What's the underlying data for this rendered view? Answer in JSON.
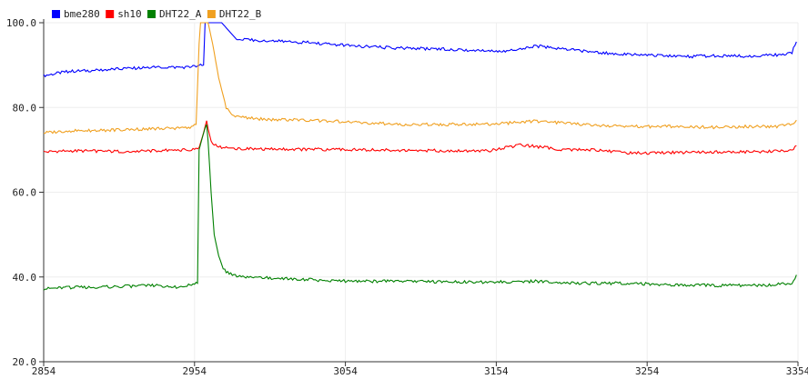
{
  "chart_data": {
    "type": "line",
    "title": "",
    "xlabel": "",
    "ylabel": "",
    "xlim": [
      2854,
      3354
    ],
    "ylim": [
      20,
      100
    ],
    "x_ticks": [
      "2854",
      "2954",
      "3054",
      "3154",
      "3254",
      "3354"
    ],
    "y_ticks": [
      "20.0",
      "40.0",
      "60.0",
      "80.0",
      "100.0"
    ],
    "grid": true,
    "legend_position": "top-left",
    "series": [
      {
        "name": "bme280",
        "color": "#0000ff",
        "x": [
          2854,
          2870,
          2890,
          2910,
          2930,
          2950,
          2960,
          2961,
          2963,
          2968,
          2970,
          2972,
          2982,
          3000,
          3030,
          3060,
          3090,
          3120,
          3140,
          3160,
          3180,
          3200,
          3220,
          3240,
          3260,
          3280,
          3300,
          3320,
          3340,
          3350,
          3353
        ],
        "y": [
          87.5,
          88.5,
          88.8,
          89.2,
          89.5,
          89.5,
          90.0,
          100.0,
          100.0,
          100.0,
          100.0,
          100.0,
          96.0,
          95.8,
          95.3,
          94.5,
          94.0,
          93.8,
          93.5,
          93.3,
          94.5,
          93.8,
          93.0,
          92.5,
          92.3,
          92.0,
          92.2,
          92.1,
          92.4,
          93.0,
          95.5
        ]
      },
      {
        "name": "sh10",
        "color": "#ff0000",
        "x": [
          2854,
          2870,
          2890,
          2910,
          2930,
          2950,
          2957,
          2960,
          2962,
          2963,
          2965,
          2968,
          2972,
          2980,
          3000,
          3030,
          3060,
          3090,
          3120,
          3150,
          3170,
          3200,
          3220,
          3240,
          3260,
          3280,
          3300,
          3320,
          3340,
          3350,
          3353
        ],
        "y": [
          69.5,
          69.8,
          69.7,
          69.6,
          69.8,
          70.0,
          70.5,
          74.0,
          77.0,
          75.0,
          72.0,
          71.0,
          70.5,
          70.3,
          70.2,
          70.1,
          70.0,
          69.9,
          69.8,
          69.8,
          71.2,
          70.0,
          70.0,
          69.2,
          69.3,
          69.4,
          69.5,
          69.5,
          69.7,
          69.8,
          71.0
        ]
      },
      {
        "name": "DHT22_A",
        "color": "#008000",
        "x": [
          2854,
          2870,
          2890,
          2910,
          2930,
          2945,
          2950,
          2956,
          2957,
          2960,
          2962,
          2963,
          2965,
          2967,
          2970,
          2973,
          2976,
          2980,
          2990,
          3000,
          3020,
          3040,
          3060,
          3090,
          3120,
          3150,
          3180,
          3210,
          3240,
          3270,
          3300,
          3330,
          3350,
          3353
        ],
        "y": [
          37.2,
          37.5,
          37.6,
          37.8,
          38.0,
          37.5,
          38.0,
          38.5,
          70.0,
          74.0,
          76.0,
          72.0,
          60.0,
          50.0,
          45.0,
          42.0,
          41.0,
          40.3,
          40.0,
          39.8,
          39.5,
          39.2,
          39.0,
          39.0,
          38.8,
          38.8,
          39.0,
          38.5,
          38.5,
          38.2,
          38.0,
          38.0,
          38.5,
          40.5
        ]
      },
      {
        "name": "DHT22_B",
        "color": "#f0a020",
        "x": [
          2854,
          2870,
          2890,
          2910,
          2930,
          2950,
          2955,
          2956,
          2957,
          2958,
          2960,
          2963,
          2966,
          2970,
          2975,
          2980,
          2990,
          3000,
          3030,
          3060,
          3090,
          3120,
          3150,
          3180,
          3210,
          3240,
          3270,
          3300,
          3320,
          3340,
          3350,
          3353
        ],
        "y": [
          74.0,
          74.5,
          74.6,
          74.8,
          75.0,
          75.2,
          76.0,
          85.0,
          95.0,
          100.0,
          100.0,
          100.0,
          95.0,
          87.0,
          80.0,
          78.0,
          77.5,
          77.2,
          77.0,
          76.5,
          76.0,
          76.0,
          76.0,
          76.8,
          76.0,
          75.5,
          75.5,
          75.3,
          75.5,
          75.5,
          76.0,
          77.0
        ]
      }
    ]
  }
}
